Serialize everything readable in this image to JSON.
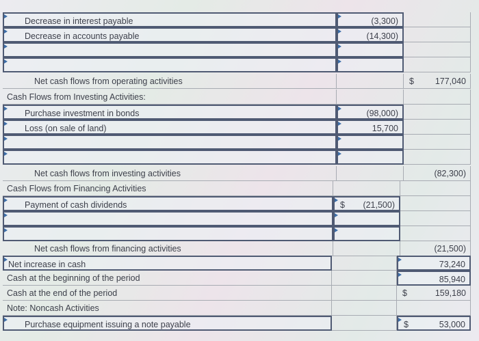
{
  "rows": [
    {
      "label": "Decrease in interest payable",
      "indent": 1,
      "col1": "(3,300)",
      "col2": "",
      "col1_dollar": "",
      "col2_dollar": ""
    },
    {
      "label": "Decrease in accounts payable",
      "indent": 1,
      "col1": "(14,300)",
      "col2": "",
      "col1_dollar": "",
      "col2_dollar": ""
    },
    {
      "label": "",
      "indent": 1,
      "col1": "",
      "col2": ""
    },
    {
      "label": "",
      "indent": 1,
      "col1": "",
      "col2": ""
    },
    {
      "label": "Net cash flows from operating activities",
      "indent": 2,
      "col1": "",
      "col2": "177,040",
      "col2_dollar": "$"
    },
    {
      "label": "Cash Flows from Investing Activities:",
      "indent": 0,
      "col1": "",
      "col2": ""
    },
    {
      "label": "Purchase investment in bonds",
      "indent": 1,
      "col1": "(98,000)",
      "col2": ""
    },
    {
      "label": "Loss (on sale of land)",
      "indent": 1,
      "col1": "15,700",
      "col2": ""
    },
    {
      "label": "",
      "indent": 1,
      "col1": "",
      "col2": ""
    },
    {
      "label": "",
      "indent": 1,
      "col1": "",
      "col2": ""
    },
    {
      "label": "Net cash flows from investing activities",
      "indent": 2,
      "col1": "",
      "col2": "(82,300)"
    },
    {
      "label": "Cash Flows from Financing Activities",
      "indent": 0,
      "col1": "",
      "col2": ""
    },
    {
      "label": "Payment of cash dividends",
      "indent": 1,
      "col1": "(21,500)",
      "col1_dollar": "$",
      "col2": ""
    },
    {
      "label": "",
      "indent": 1,
      "col1": "",
      "col2": ""
    },
    {
      "label": "",
      "indent": 1,
      "col1": "",
      "col2": ""
    },
    {
      "label": "Net cash flows from financing activities",
      "indent": 2,
      "col1": "",
      "col2": "(21,500)"
    },
    {
      "label": "Net increase in cash",
      "indent": 0,
      "col1": "",
      "col2": "73,240"
    },
    {
      "label": "Cash at the beginning of the period",
      "indent": 0,
      "col1": "",
      "col2": "85,940"
    },
    {
      "label": "Cash at the end of the period",
      "indent": 0,
      "col1": "",
      "col2": "159,180",
      "col2_dollar": "$"
    },
    {
      "label": "Note: Noncash Activities",
      "indent": 0,
      "col1": "",
      "col2": ""
    },
    {
      "label": "Purchase equipment issuing a note payable",
      "indent": 1,
      "col1": "",
      "col2": "53,000",
      "col2_dollar": "$"
    }
  ]
}
